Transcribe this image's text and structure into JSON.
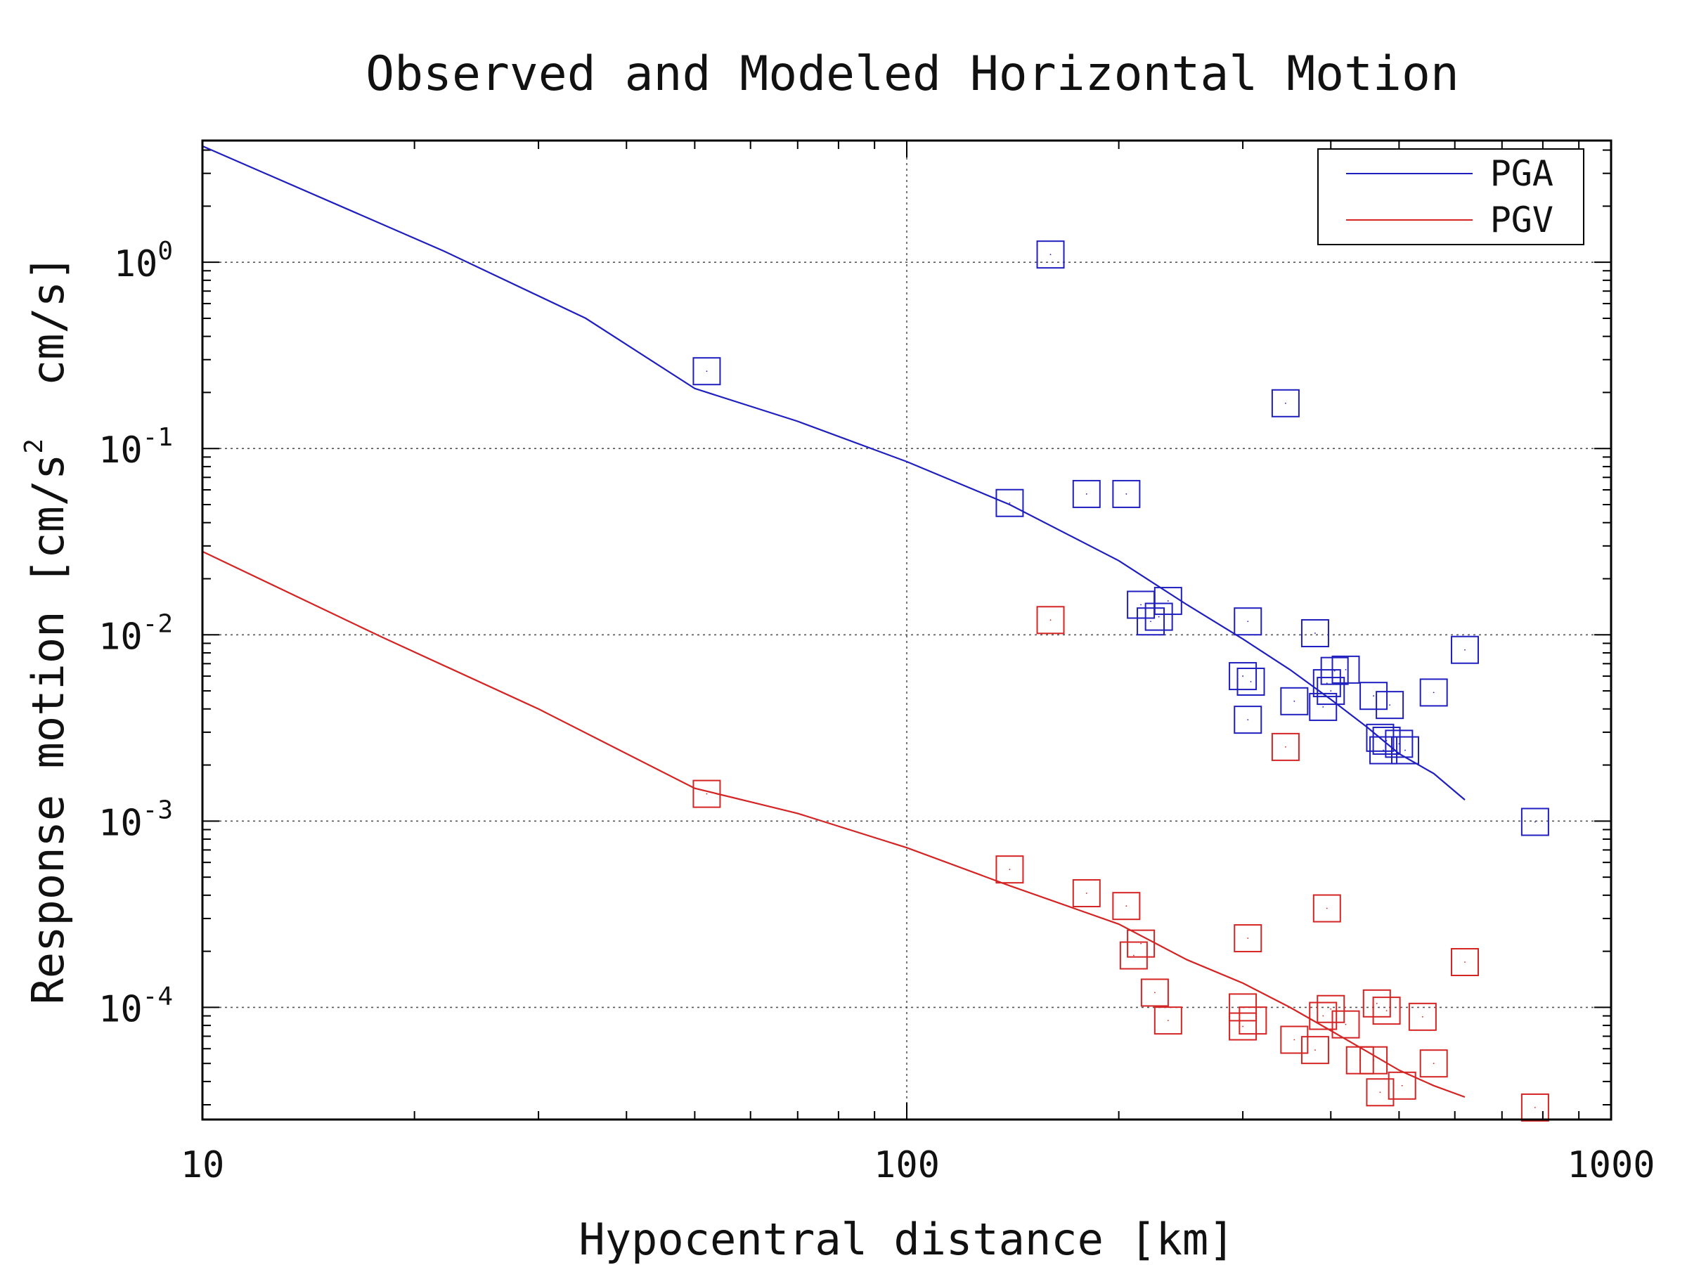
{
  "chart_data": {
    "type": "scatter",
    "title": "Observed and Modeled Horizontal Motion",
    "xlabel": "Hypocentral distance [km]",
    "ylabel": "Response motion [cm/s² cm/s]",
    "ylabel_parts": {
      "prefix": "Response motion [cm/s",
      "sup": "2",
      "suffix": "  cm/s]"
    },
    "x_scale": "log",
    "y_scale": "log",
    "xlim": [
      10,
      1000
    ],
    "ylim": [
      2.5e-05,
      4.5
    ],
    "x_ticks": [
      {
        "value": 10,
        "label": "10"
      },
      {
        "value": 100,
        "label": "100"
      },
      {
        "value": 1000,
        "label": "1000"
      }
    ],
    "y_ticks": [
      {
        "value": 1,
        "base": "10",
        "exp": "0"
      },
      {
        "value": 0.1,
        "base": "10",
        "exp": "-1"
      },
      {
        "value": 0.01,
        "base": "10",
        "exp": "-2"
      },
      {
        "value": 0.001,
        "base": "10",
        "exp": "-3"
      },
      {
        "value": 0.0001,
        "base": "10",
        "exp": "-4"
      }
    ],
    "grid": true,
    "legend_position": "top-right",
    "series": [
      {
        "name": "PGA",
        "color": "#1f1fbf",
        "line": {
          "x": [
            10,
            22,
            35,
            50,
            70,
            100,
            140,
            200,
            250,
            300,
            350,
            400,
            450,
            500,
            560,
            620
          ],
          "y": [
            4.2,
            1.15,
            0.5,
            0.21,
            0.14,
            0.085,
            0.05,
            0.025,
            0.0145,
            0.0095,
            0.0065,
            0.0045,
            0.0032,
            0.0023,
            0.0018,
            0.0013
          ]
        },
        "observed": {
          "x": [
            52,
            160,
            345,
            140,
            180,
            205,
            215,
            235,
            228,
            222,
            305,
            308,
            300,
            305,
            355,
            380,
            390,
            400,
            395,
            405,
            420,
            470,
            460,
            475,
            480,
            485,
            500,
            510,
            560,
            620,
            780
          ],
          "y": [
            0.26,
            1.1,
            0.175,
            0.051,
            0.057,
            0.057,
            0.0145,
            0.0152,
            0.0125,
            0.0118,
            0.0118,
            0.0056,
            0.006,
            0.0035,
            0.0044,
            0.0102,
            0.0041,
            0.005,
            0.0055,
            0.0064,
            0.0065,
            0.0028,
            0.0047,
            0.0024,
            0.0027,
            0.0042,
            0.0026,
            0.0024,
            0.0049,
            0.0083,
            0.00099
          ]
        }
      },
      {
        "name": "PGV",
        "color": "#d42424",
        "line": {
          "x": [
            10,
            18,
            30,
            50,
            70,
            100,
            140,
            200,
            250,
            300,
            350,
            400,
            450,
            500,
            560,
            620
          ],
          "y": [
            0.028,
            0.0097,
            0.004,
            0.0015,
            0.0011,
            0.00072,
            0.00045,
            0.00028,
            0.00018,
            0.000135,
            0.0001,
            7.5e-05,
            5.8e-05,
            4.6e-05,
            3.8e-05,
            3.3e-05
          ]
        },
        "observed": {
          "x": [
            52,
            160,
            345,
            140,
            180,
            205,
            210,
            225,
            215,
            235,
            305,
            300,
            300,
            310,
            355,
            380,
            390,
            400,
            395,
            420,
            440,
            460,
            465,
            470,
            480,
            505,
            540,
            560,
            620,
            780
          ],
          "y": [
            0.0014,
            0.012,
            0.0025,
            0.00055,
            0.00041,
            0.00035,
            0.00019,
            0.00012,
            0.00022,
            8.5e-05,
            0.000235,
            0.0001,
            7.9e-05,
            8.5e-05,
            6.7e-05,
            5.9e-05,
            9e-05,
            9.8e-05,
            0.00034,
            8.1e-05,
            5.2e-05,
            5.2e-05,
            0.000105,
            3.5e-05,
            9.6e-05,
            3.8e-05,
            8.9e-05,
            5e-05,
            0.000175,
            2.9e-05
          ]
        }
      }
    ]
  }
}
